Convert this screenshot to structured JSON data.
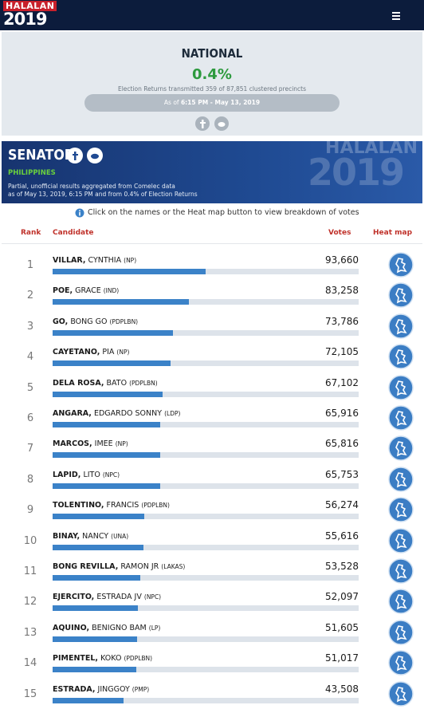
{
  "header": {
    "logo_top": "HALALAN",
    "logo_year": "2019"
  },
  "summary": {
    "title": "NATIONAL",
    "percent": "0.4%",
    "transmitted": "Election Returns transmitted 359 of 87,851 clustered precincts",
    "as_of_prefix": "As of",
    "as_of_time": "6:15 PM - May 13, 2019"
  },
  "senator": {
    "title": "SENATOR",
    "region": "PHILIPPINES",
    "note_1": "Partial, unofficial results aggregated from Comelec data",
    "note_2": "as of May 13, 2019, 6:15 PM and from 0.4% of Election Returns",
    "banner_logo": "HALALAN",
    "banner_year": "2019"
  },
  "info": "Click on the names or the Heat map button to view breakdown of votes",
  "table": {
    "columns": [
      "Rank",
      "Candidate",
      "Votes",
      "Heat map"
    ],
    "rows": [
      {
        "rank": 1,
        "surname": "VILLAR,",
        "given": "CYNTHIA",
        "party": "(NP)",
        "votes": 93660,
        "votes_label": "93,660"
      },
      {
        "rank": 2,
        "surname": "POE,",
        "given": "GRACE",
        "party": "(IND)",
        "votes": 83258,
        "votes_label": "83,258"
      },
      {
        "rank": 3,
        "surname": "GO,",
        "given": "BONG GO",
        "party": "(PDPLBN)",
        "votes": 73786,
        "votes_label": "73,786"
      },
      {
        "rank": 4,
        "surname": "CAYETANO,",
        "given": "PIA",
        "party": "(NP)",
        "votes": 72105,
        "votes_label": "72,105"
      },
      {
        "rank": 5,
        "surname": "DELA ROSA,",
        "given": "BATO",
        "party": "(PDPLBN)",
        "votes": 67102,
        "votes_label": "67,102"
      },
      {
        "rank": 6,
        "surname": "ANGARA,",
        "given": "EDGARDO SONNY",
        "party": "(LDP)",
        "votes": 65916,
        "votes_label": "65,916"
      },
      {
        "rank": 7,
        "surname": "MARCOS,",
        "given": "IMEE",
        "party": "(NP)",
        "votes": 65816,
        "votes_label": "65,816"
      },
      {
        "rank": 8,
        "surname": "LAPID,",
        "given": "LITO",
        "party": "(NPC)",
        "votes": 65753,
        "votes_label": "65,753"
      },
      {
        "rank": 9,
        "surname": "TOLENTINO,",
        "given": "FRANCIS",
        "party": "(PDPLBN)",
        "votes": 56274,
        "votes_label": "56,274"
      },
      {
        "rank": 10,
        "surname": "BINAY,",
        "given": "NANCY",
        "party": "(UNA)",
        "votes": 55616,
        "votes_label": "55,616"
      },
      {
        "rank": 11,
        "surname": "BONG REVILLA,",
        "given": "RAMON JR",
        "party": "(LAKAS)",
        "votes": 53528,
        "votes_label": "53,528"
      },
      {
        "rank": 12,
        "surname": "EJERCITO,",
        "given": "ESTRADA JV",
        "party": "(NPC)",
        "votes": 52097,
        "votes_label": "52,097"
      },
      {
        "rank": 13,
        "surname": "AQUINO,",
        "given": "BENIGNO BAM",
        "party": "(LP)",
        "votes": 51605,
        "votes_label": "51,605"
      },
      {
        "rank": 14,
        "surname": "PIMENTEL,",
        "given": "KOKO",
        "party": "(PDPLBN)",
        "votes": 51017,
        "votes_label": "51,017"
      },
      {
        "rank": 15,
        "surname": "ESTRADA,",
        "given": "JINGGOY",
        "party": "(PMP)",
        "votes": 43508,
        "votes_label": "43,508"
      }
    ]
  }
}
